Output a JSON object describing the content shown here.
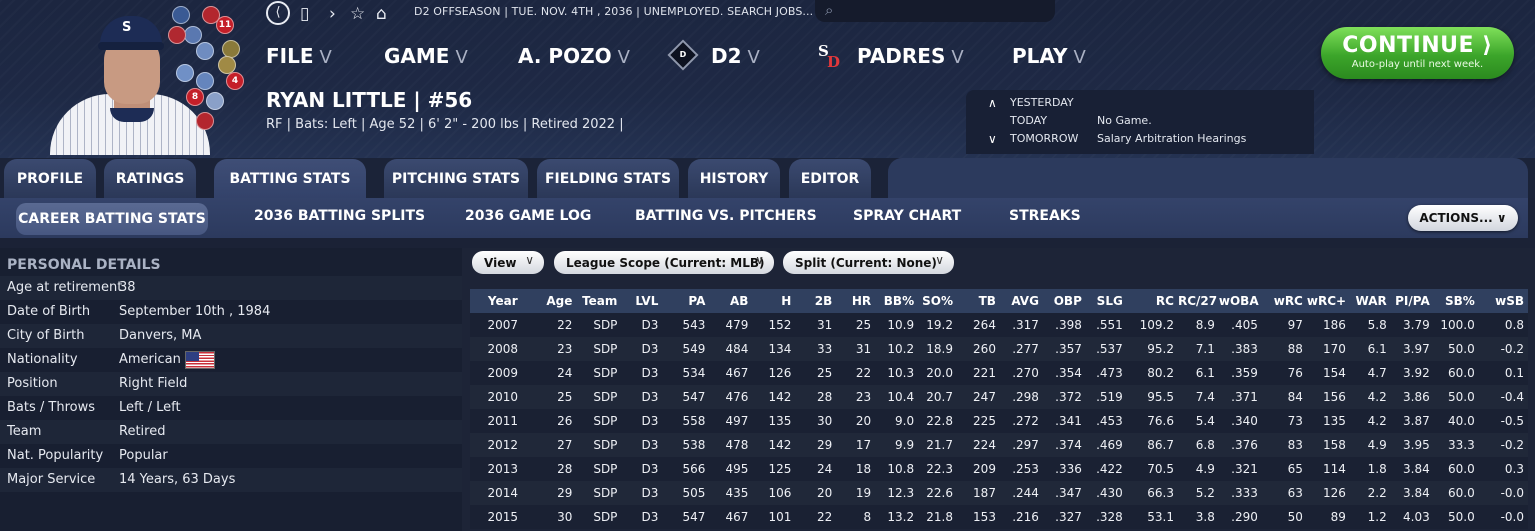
{
  "toolbar": {
    "status_line": "D2 OFFSEASON  |  TUE. NOV. 4TH , 2036  |  UNEMPLOYED. SEARCH JOBS...",
    "search_placeholder": ""
  },
  "badges": [
    "11",
    "4",
    "8"
  ],
  "menu": {
    "file": "FILE",
    "game": "GAME",
    "manager": "A. POZO",
    "league": "D2",
    "league_logo_text": "D",
    "team": "PADRES",
    "play": "PLAY",
    "chevron": "V"
  },
  "continue_button": {
    "label": "CONTINUE  ⟩",
    "sublabel": "Auto-play until next week."
  },
  "player": {
    "name": "RYAN LITTLE  |  #56",
    "info": "RF | Bats: Left  |  Age 52  |  6' 2\" - 200 lbs  |  Retired 2022  |"
  },
  "schedule": {
    "yesterday_label": "YESTERDAY",
    "today_label": "TODAY",
    "today_value": "No Game.",
    "tomorrow_label": "TOMORROW",
    "tomorrow_value": "Salary Arbitration Hearings"
  },
  "tabs": [
    "PROFILE",
    "RATINGS",
    "BATTING STATS",
    "PITCHING STATS",
    "FIELDING STATS",
    "HISTORY",
    "EDITOR"
  ],
  "subtabs": [
    "CAREER BATTING STATS",
    "2036 BATTING SPLITS",
    "2036 GAME LOG",
    "BATTING VS. PITCHERS",
    "SPRAY CHART",
    "STREAKS"
  ],
  "actions_label": "ACTIONS...  ∨",
  "details": {
    "header": "PERSONAL DETAILS",
    "rows": [
      {
        "label": "Age at retirement",
        "value": "38"
      },
      {
        "label": "Date of Birth",
        "value": "September 10th , 1984"
      },
      {
        "label": "City of Birth",
        "value": "Danvers, MA"
      },
      {
        "label": "Nationality",
        "value": "American"
      },
      {
        "label": "Position",
        "value": "Right Field"
      },
      {
        "label": "Bats / Throws",
        "value": "Left / Left"
      },
      {
        "label": "Team",
        "value": "Retired"
      },
      {
        "label": "Nat. Popularity",
        "value": "Popular"
      },
      {
        "label": "Major Service",
        "value": "14 Years, 63 Days"
      }
    ]
  },
  "filters": {
    "view": "View",
    "league_scope": "League Scope (Current: MLB)",
    "split": "Split (Current: None)",
    "chevron": "∨"
  },
  "stats": {
    "columns": [
      "Year",
      "Age",
      "Team",
      "LVL",
      "PA",
      "AB",
      "H",
      "2B",
      "HR",
      "BB%",
      "SO%",
      "TB",
      "AVG",
      "OBP",
      "SLG",
      "RC",
      "RC/27",
      "wOBA",
      "wRC",
      "wRC+",
      "WAR",
      "PI/PA",
      "SB%",
      "wSB"
    ],
    "rows": [
      [
        "2007",
        "22",
        "SDP",
        "D3",
        "543",
        "479",
        "152",
        "31",
        "25",
        "10.9",
        "19.2",
        "264",
        ".317",
        ".398",
        ".551",
        "109.2",
        "8.9",
        ".405",
        "97",
        "186",
        "5.8",
        "3.79",
        "100.0",
        "0.8"
      ],
      [
        "2008",
        "23",
        "SDP",
        "D3",
        "549",
        "484",
        "134",
        "33",
        "31",
        "10.2",
        "18.9",
        "260",
        ".277",
        ".357",
        ".537",
        "95.2",
        "7.1",
        ".383",
        "88",
        "170",
        "6.1",
        "3.97",
        "50.0",
        "-0.2"
      ],
      [
        "2009",
        "24",
        "SDP",
        "D3",
        "534",
        "467",
        "126",
        "25",
        "22",
        "10.3",
        "20.0",
        "221",
        ".270",
        ".354",
        ".473",
        "80.2",
        "6.1",
        ".359",
        "76",
        "154",
        "4.7",
        "3.92",
        "60.0",
        "0.1"
      ],
      [
        "2010",
        "25",
        "SDP",
        "D3",
        "547",
        "476",
        "142",
        "28",
        "23",
        "10.4",
        "20.7",
        "247",
        ".298",
        ".372",
        ".519",
        "95.5",
        "7.4",
        ".371",
        "84",
        "156",
        "4.2",
        "3.86",
        "50.0",
        "-0.4"
      ],
      [
        "2011",
        "26",
        "SDP",
        "D3",
        "558",
        "497",
        "135",
        "30",
        "20",
        "9.0",
        "22.8",
        "225",
        ".272",
        ".341",
        ".453",
        "76.6",
        "5.4",
        ".340",
        "73",
        "135",
        "4.2",
        "3.87",
        "40.0",
        "-0.5"
      ],
      [
        "2012",
        "27",
        "SDP",
        "D3",
        "538",
        "478",
        "142",
        "29",
        "17",
        "9.9",
        "21.7",
        "224",
        ".297",
        ".374",
        ".469",
        "86.7",
        "6.8",
        ".376",
        "83",
        "158",
        "4.9",
        "3.95",
        "33.3",
        "-0.2"
      ],
      [
        "2013",
        "28",
        "SDP",
        "D3",
        "566",
        "495",
        "125",
        "24",
        "18",
        "10.8",
        "22.3",
        "209",
        ".253",
        ".336",
        ".422",
        "70.5",
        "4.9",
        ".321",
        "65",
        "114",
        "1.8",
        "3.84",
        "60.0",
        "0.3"
      ],
      [
        "2014",
        "29",
        "SDP",
        "D3",
        "505",
        "435",
        "106",
        "20",
        "19",
        "12.3",
        "22.6",
        "187",
        ".244",
        ".347",
        ".430",
        "66.3",
        "5.2",
        ".333",
        "63",
        "126",
        "2.2",
        "3.84",
        "60.0",
        "-0.0"
      ],
      [
        "2015",
        "30",
        "SDP",
        "D3",
        "547",
        "467",
        "101",
        "22",
        "8",
        "13.2",
        "21.8",
        "153",
        ".216",
        ".327",
        ".328",
        "53.1",
        "3.8",
        ".290",
        "50",
        "89",
        "1.2",
        "4.03",
        "50.0",
        "-0.0"
      ]
    ]
  }
}
